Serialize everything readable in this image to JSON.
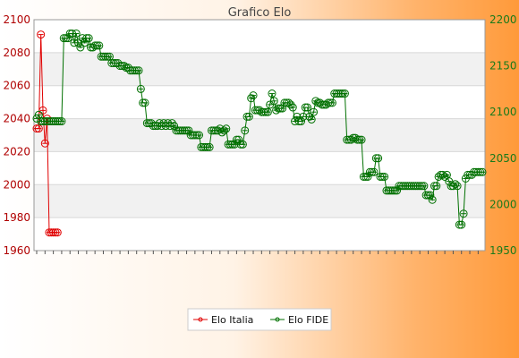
{
  "chart_data": {
    "type": "line",
    "title": "Grafico Elo",
    "xlabel": "",
    "ylabel_left": "",
    "ylabel_right": "",
    "y_left": {
      "min": 1960,
      "max": 2100,
      "ticks": [
        "1960",
        "1980",
        "2000",
        "2020",
        "2040",
        "2060",
        "2080",
        "2100"
      ]
    },
    "y_right": {
      "min": 1950,
      "max": 2200,
      "ticks": [
        "1950",
        "2000",
        "2050",
        "2100",
        "2150",
        "2200"
      ]
    },
    "grid": true,
    "legend_position": "bottom",
    "legend": [
      {
        "label": "Elo Italia",
        "color": "#e00000"
      },
      {
        "label": "Elo FIDE",
        "color": "#007000"
      }
    ],
    "series": [
      {
        "name": "Elo Italia",
        "axis": "left",
        "color": "#e00000",
        "values": [
          2034,
          2034,
          2091,
          2045,
          2025,
          2040,
          1971,
          1971,
          1971,
          1971,
          1971
        ]
      },
      {
        "name": "Elo FIDE",
        "axis": "right",
        "color": "#007000",
        "values": [
          2093,
          2097,
          2090,
          2090,
          2090,
          2090,
          2090,
          2090,
          2090,
          2090,
          2090,
          2090,
          2090,
          2180,
          2180,
          2180,
          2185,
          2185,
          2175,
          2185,
          2175,
          2170,
          2180,
          2175,
          2180,
          2180,
          2170,
          2170,
          2172,
          2172,
          2172,
          2160,
          2160,
          2160,
          2160,
          2160,
          2153,
          2153,
          2153,
          2153,
          2150,
          2150,
          2150,
          2148,
          2148,
          2145,
          2145,
          2145,
          2145,
          2145,
          2125,
          2110,
          2110,
          2088,
          2088,
          2088,
          2085,
          2085,
          2085,
          2088,
          2085,
          2088,
          2085,
          2088,
          2085,
          2088,
          2085,
          2080,
          2080,
          2080,
          2080,
          2080,
          2080,
          2080,
          2075,
          2075,
          2075,
          2075,
          2075,
          2062,
          2062,
          2062,
          2062,
          2062,
          2080,
          2080,
          2080,
          2080,
          2082,
          2078,
          2080,
          2082,
          2065,
          2065,
          2065,
          2065,
          2070,
          2070,
          2065,
          2065,
          2080,
          2095,
          2095,
          2115,
          2118,
          2102,
          2102,
          2102,
          2100,
          2100,
          2100,
          2100,
          2108,
          2120,
          2112,
          2102,
          2104,
          2104,
          2104,
          2110,
          2110,
          2110,
          2108,
          2105,
          2090,
          2095,
          2090,
          2090,
          2095,
          2105,
          2105,
          2095,
          2092,
          2100,
          2112,
          2110,
          2110,
          2108,
          2108,
          2108,
          2110,
          2110,
          2110,
          2120,
          2120,
          2120,
          2120,
          2120,
          2120,
          2070,
          2070,
          2070,
          2072,
          2072,
          2070,
          2070,
          2070,
          2030,
          2030,
          2030,
          2035,
          2035,
          2035,
          2050,
          2050,
          2030,
          2030,
          2030,
          2015,
          2015,
          2015,
          2015,
          2015,
          2015,
          2020,
          2020,
          2020,
          2020,
          2020,
          2020,
          2020,
          2020,
          2020,
          2020,
          2020,
          2020,
          2020,
          2010,
          2010,
          2010,
          2005,
          2020,
          2020,
          2030,
          2032,
          2032,
          2030,
          2032,
          2025,
          2020,
          2020,
          2022,
          2020,
          1978,
          1978,
          1990,
          2028,
          2032,
          2032,
          2032,
          2035,
          2035,
          2035,
          2035,
          2035
        ]
      }
    ]
  }
}
